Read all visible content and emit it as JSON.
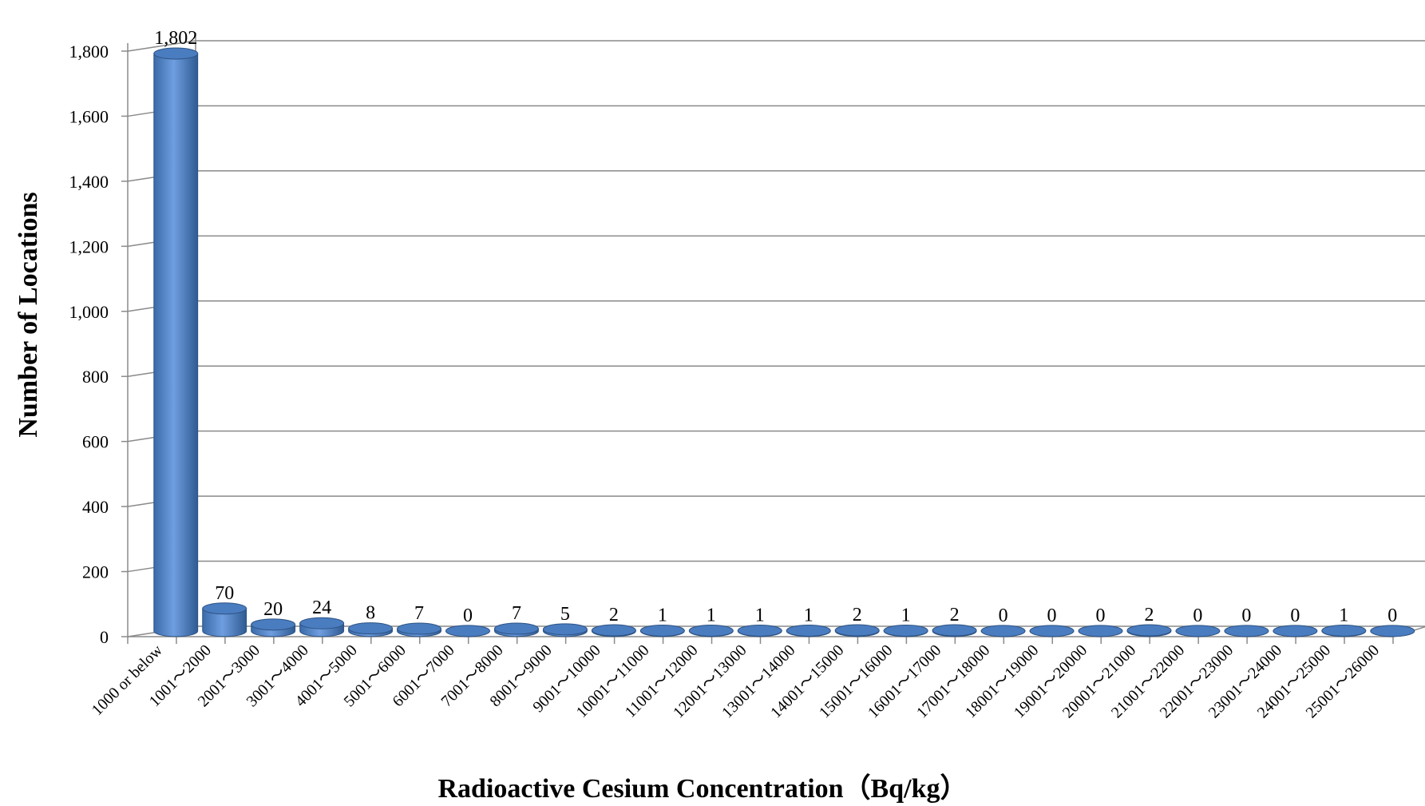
{
  "chart_data": {
    "type": "bar",
    "title": "",
    "xlabel": "Radioactive Cesium Concentration（Bq/kg）",
    "ylabel": "Number of Locations",
    "ylim": [
      0,
      1800
    ],
    "yticks": [
      "0",
      "200",
      "400",
      "600",
      "800",
      "1,000",
      "1,200",
      "1,400",
      "1,600",
      "1,800"
    ],
    "grid": true,
    "legend": "none",
    "bar_color": "#4f81bd",
    "categories": [
      "1000 or below",
      "1001～2000",
      "2001～3000",
      "3001～4000",
      "4001～5000",
      "5001～6000",
      "6001～7000",
      "7001～8000",
      "8001～9000",
      "9001～10000",
      "10001～11000",
      "11001～12000",
      "12001～13000",
      "13001～14000",
      "14001～15000",
      "15001～16000",
      "16001～17000",
      "17001～18000",
      "18001～19000",
      "19001～20000",
      "20001～21000",
      "21001～22000",
      "22001～23000",
      "23001～24000",
      "24001～25000",
      "25001～26000"
    ],
    "values": [
      1802,
      70,
      20,
      24,
      8,
      7,
      0,
      7,
      5,
      2,
      1,
      1,
      1,
      1,
      2,
      1,
      2,
      0,
      0,
      0,
      2,
      0,
      0,
      0,
      1,
      0
    ],
    "data_labels": [
      "1,802",
      "70",
      "20",
      "24",
      "8",
      "7",
      "0",
      "7",
      "5",
      "2",
      "1",
      "1",
      "1",
      "1",
      "2",
      "1",
      "2",
      "0",
      "0",
      "0",
      "2",
      "0",
      "0",
      "0",
      "1",
      "0"
    ]
  }
}
